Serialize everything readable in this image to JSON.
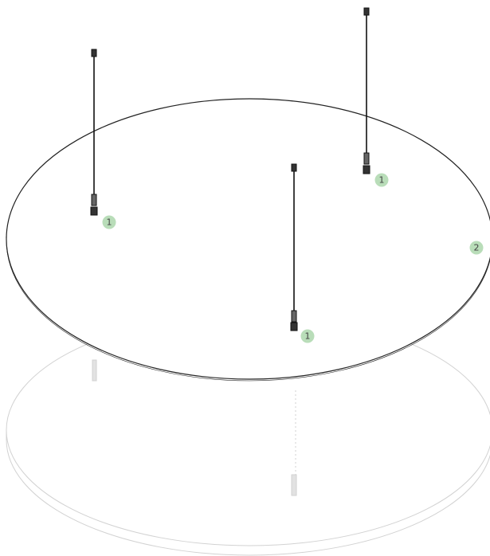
{
  "callouts": [
    {
      "label": "1"
    },
    {
      "label": "1"
    },
    {
      "label": "1"
    },
    {
      "label": "2"
    }
  ]
}
